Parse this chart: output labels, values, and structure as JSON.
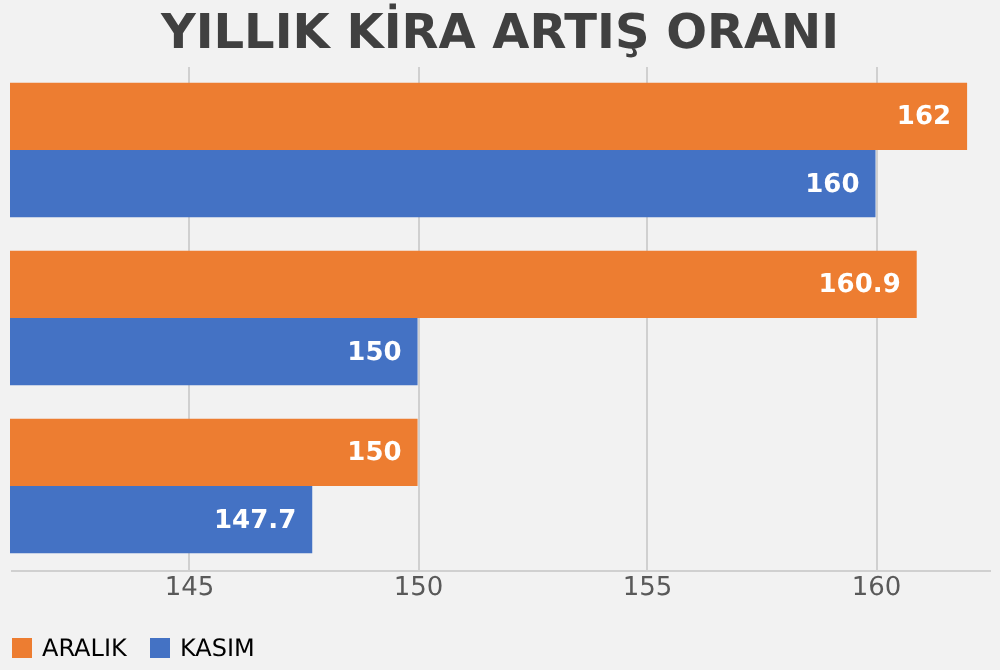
{
  "chart_data": {
    "type": "bar",
    "orientation": "horizontal",
    "title": "YILLIK KİRA ARTIŞ ORANI",
    "categories": [
      null,
      null,
      null
    ],
    "series": [
      {
        "name": "ARALIK",
        "color": "#ed7d31",
        "values": [
          162,
          160.9,
          150
        ]
      },
      {
        "name": "KASIM",
        "color": "#4472c4",
        "values": [
          160,
          150,
          147.7
        ]
      }
    ],
    "xlim": [
      141.1,
      162.5
    ],
    "xticks": [
      145,
      150,
      155,
      160
    ],
    "grid": "x",
    "legend": "bottom",
    "data_labels": true,
    "tick_labels": "x"
  }
}
